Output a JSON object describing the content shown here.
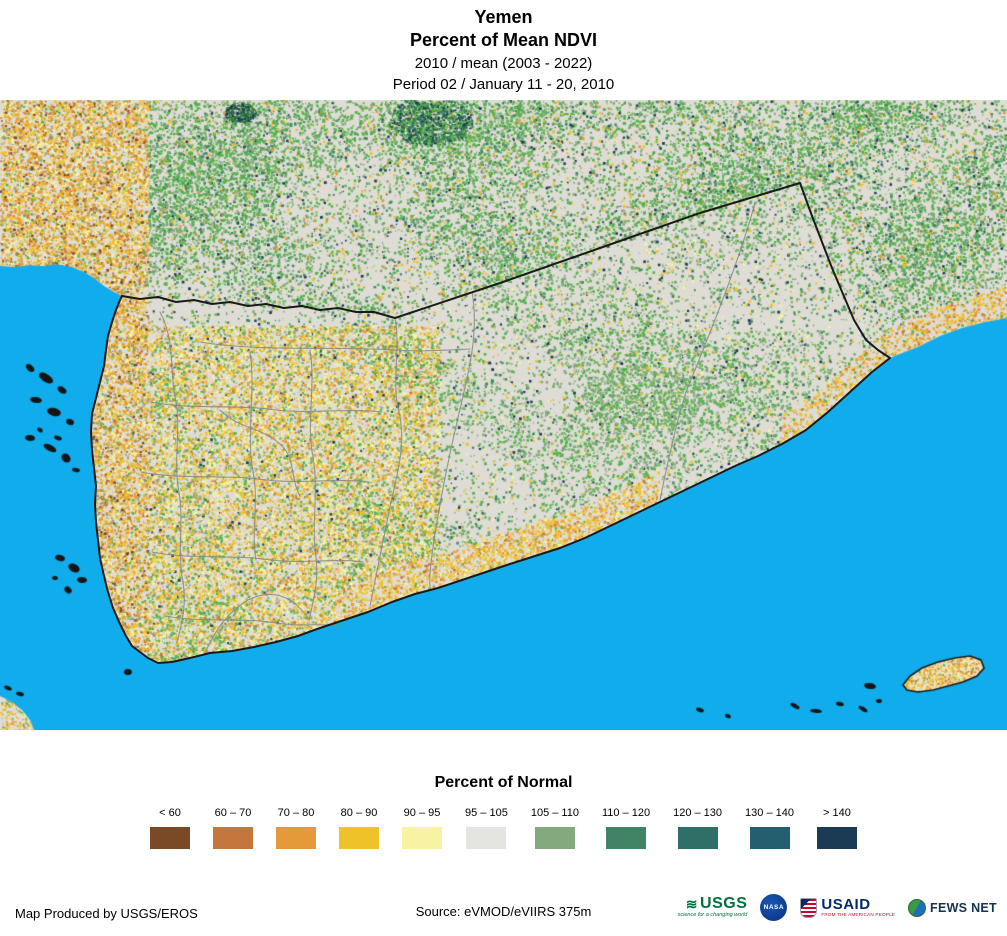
{
  "header": {
    "title": "Yemen",
    "subtitle": "Percent of Mean NDVI",
    "year_line": "2010 / mean (2003 - 2022)",
    "period_line": "Period 02 / January 11 - 20, 2010"
  },
  "legend": {
    "title": "Percent of Normal",
    "classes": [
      {
        "label": "< 60",
        "color": "#7A4A26"
      },
      {
        "label": "60 – 70",
        "color": "#C4763C"
      },
      {
        "label": "70 – 80",
        "color": "#E59A3A"
      },
      {
        "label": "80 – 90",
        "color": "#F0C22A"
      },
      {
        "label": "90 – 95",
        "color": "#F8F3A2"
      },
      {
        "label": "95 – 105",
        "color": "#E4E4E0"
      },
      {
        "label": "105 – 110",
        "color": "#85A97F"
      },
      {
        "label": "110 – 120",
        "color": "#3F8465"
      },
      {
        "label": "120 – 130",
        "color": "#2E6F68"
      },
      {
        "label": "130 – 140",
        "color": "#23606F"
      },
      {
        "label": "> 140",
        "color": "#1B3A54"
      }
    ]
  },
  "map": {
    "ocean_color": "#10ACEC",
    "land_color": "#DEDCD5",
    "veg_green": "#56B14B",
    "veg_green_dark": "#2F7D3A",
    "border_color": "#1A1A1A",
    "admin_color": "#8A8A8A",
    "island_color": "#151515",
    "socotra_base": "#E8E2C6"
  },
  "footer": {
    "credit": "Map Produced by USGS/EROS",
    "source": "Source: eVMOD/eVIIRS 375m",
    "logos": [
      {
        "name": "USGS",
        "tagline": "science for a changing world"
      },
      {
        "name": "NASA",
        "tagline": ""
      },
      {
        "name": "USAID",
        "tagline": "FROM THE AMERICAN PEOPLE"
      },
      {
        "name": "FEWS NET",
        "tagline": ""
      }
    ]
  }
}
